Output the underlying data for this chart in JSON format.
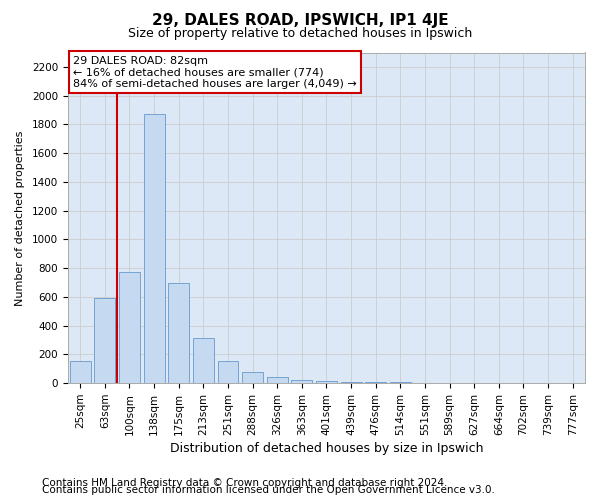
{
  "title1": "29, DALES ROAD, IPSWICH, IP1 4JE",
  "title2": "Size of property relative to detached houses in Ipswich",
  "xlabel": "Distribution of detached houses by size in Ipswich",
  "ylabel": "Number of detached properties",
  "categories": [
    "25sqm",
    "63sqm",
    "100sqm",
    "138sqm",
    "175sqm",
    "213sqm",
    "251sqm",
    "288sqm",
    "326sqm",
    "363sqm",
    "401sqm",
    "439sqm",
    "476sqm",
    "514sqm",
    "551sqm",
    "589sqm",
    "627sqm",
    "664sqm",
    "702sqm",
    "739sqm",
    "777sqm"
  ],
  "values": [
    155,
    590,
    775,
    1870,
    700,
    315,
    155,
    75,
    40,
    25,
    18,
    10,
    8,
    5,
    3,
    2,
    1,
    1,
    1,
    1,
    1
  ],
  "bar_color": "#c5d9f0",
  "bar_edge_color": "#6699cc",
  "red_line_x": 1.5,
  "annotation_line1": "29 DALES ROAD: 82sqm",
  "annotation_line2": "← 16% of detached houses are smaller (774)",
  "annotation_line3": "84% of semi-detached houses are larger (4,049) →",
  "annotation_box_color": "#ffffff",
  "annotation_box_edge": "#cc0000",
  "ylim": [
    0,
    2300
  ],
  "yticks": [
    0,
    200,
    400,
    600,
    800,
    1000,
    1200,
    1400,
    1600,
    1800,
    2000,
    2200
  ],
  "grid_color": "#cccccc",
  "background_color": "#dce8f5",
  "footer1": "Contains HM Land Registry data © Crown copyright and database right 2024.",
  "footer2": "Contains public sector information licensed under the Open Government Licence v3.0.",
  "title_fontsize": 11,
  "subtitle_fontsize": 9,
  "xlabel_fontsize": 9,
  "ylabel_fontsize": 8,
  "tick_fontsize": 7.5,
  "footer_fontsize": 7.5,
  "annotation_fontsize": 8
}
